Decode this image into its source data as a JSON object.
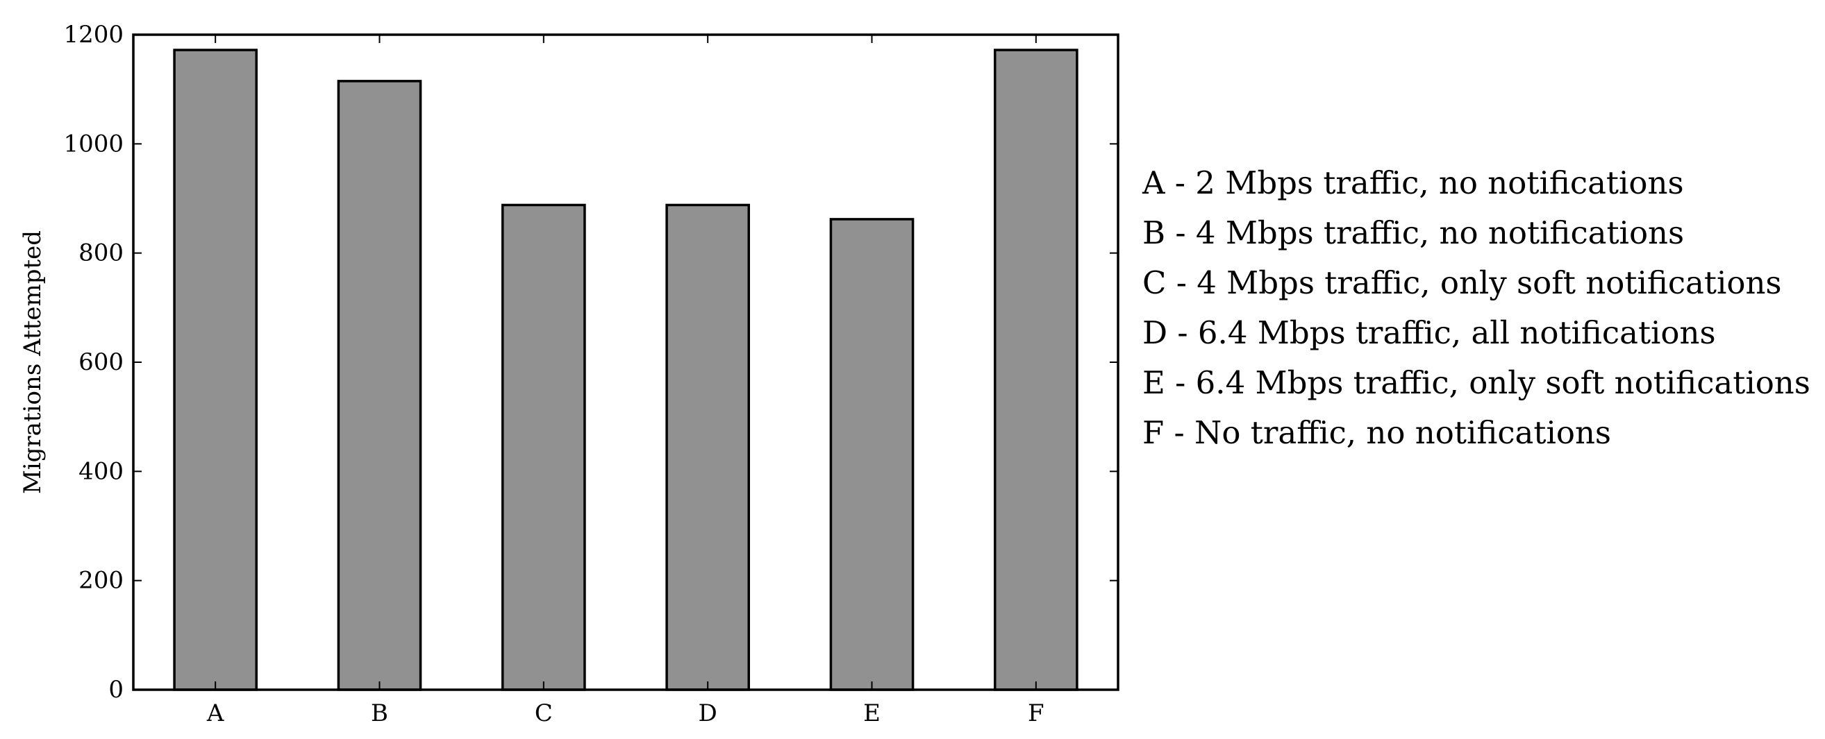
{
  "chart_data": {
    "type": "bar",
    "categories": [
      "A",
      "B",
      "C",
      "D",
      "E",
      "F"
    ],
    "values": [
      1172,
      1115,
      888,
      888,
      862,
      1172
    ],
    "title": "",
    "xlabel": "",
    "ylabel": "Migrations Attempted",
    "ylim": [
      0,
      1200
    ],
    "yticks": [
      0,
      200,
      400,
      600,
      800,
      1000,
      1200
    ],
    "grid": false,
    "bar_color": "#919191",
    "edge_color": "#000000",
    "legend_position": "right",
    "annotations": [
      "A - 2 Mbps traffic, no notifications",
      "B - 4 Mbps traffic, no notifications",
      "C - 4 Mbps traffic, only soft notifications",
      "D - 6.4 Mbps traffic, all notifications",
      "E - 6.4 Mbps traffic, only soft notifications",
      "F - No traffic, no notifications"
    ]
  }
}
